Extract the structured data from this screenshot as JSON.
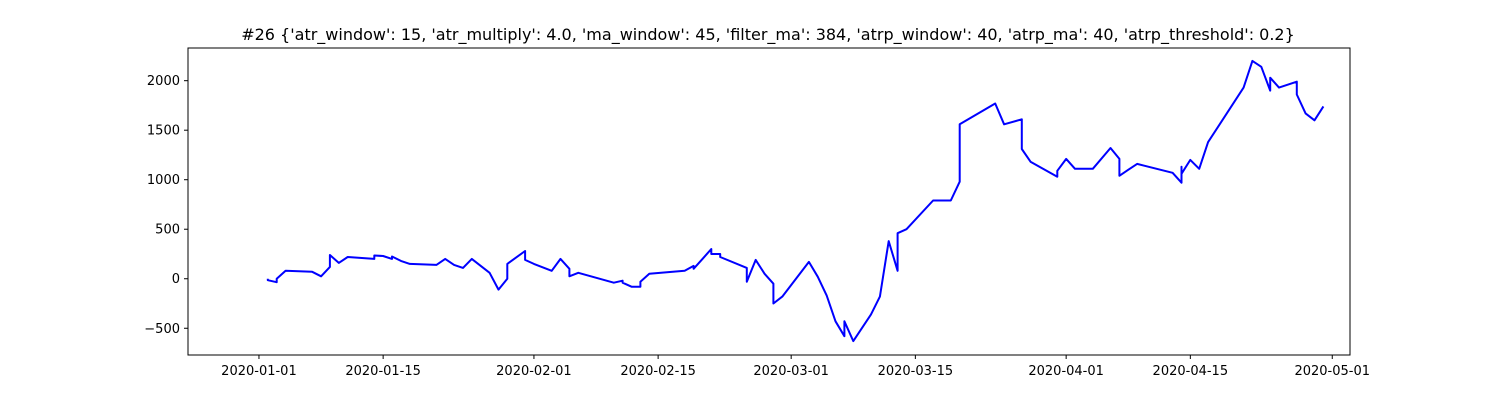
{
  "chart_data": {
    "type": "line",
    "title": "#26 {'atr_window': 15, 'atr_multiply': 4.0, 'ma_window': 45, 'filter_ma': 384, 'atrp_window': 40, 'atrp_ma': 40, 'atrp_threshold': 0.2}",
    "xlabel": "",
    "ylabel": "",
    "xlim": [
      "2019-12-24",
      "2020-05-03"
    ],
    "ylim": [
      -770,
      2330
    ],
    "x_ticks": [
      "2020-01-01",
      "2020-01-15",
      "2020-02-01",
      "2020-02-15",
      "2020-03-01",
      "2020-03-15",
      "2020-04-01",
      "2020-04-15",
      "2020-05-01"
    ],
    "y_ticks": [
      -500,
      0,
      500,
      1000,
      1500,
      2000
    ],
    "y_tick_labels": [
      "−500",
      "0",
      "500",
      "1000",
      "1500",
      "2000"
    ],
    "grid": false,
    "color": "#0000ff",
    "series": [
      {
        "name": "",
        "x": [
          "2020-01-02",
          "2020-01-02",
          "2020-01-03",
          "2020-01-03",
          "2020-01-04",
          "2020-01-07",
          "2020-01-08",
          "2020-01-09",
          "2020-01-09",
          "2020-01-10",
          "2020-01-11",
          "2020-01-14",
          "2020-01-14",
          "2020-01-15",
          "2020-01-16",
          "2020-01-16",
          "2020-01-17",
          "2020-01-18",
          "2020-01-21",
          "2020-01-22",
          "2020-01-23",
          "2020-01-24",
          "2020-01-25",
          "2020-01-27",
          "2020-01-28",
          "2020-01-29",
          "2020-01-29",
          "2020-01-31",
          "2020-01-31",
          "2020-02-01",
          "2020-02-03",
          "2020-02-04",
          "2020-02-05",
          "2020-02-05",
          "2020-02-06",
          "2020-02-06",
          "2020-02-10",
          "2020-02-11",
          "2020-02-11",
          "2020-02-12",
          "2020-02-13",
          "2020-02-13",
          "2020-02-14",
          "2020-02-18",
          "2020-02-19",
          "2020-02-19",
          "2020-02-20",
          "2020-02-21",
          "2020-02-21",
          "2020-02-22",
          "2020-02-22",
          "2020-02-25",
          "2020-02-25",
          "2020-02-26",
          "2020-02-27",
          "2020-02-28",
          "2020-02-28",
          "2020-02-29",
          "2020-03-03",
          "2020-03-04",
          "2020-03-05",
          "2020-03-06",
          "2020-03-07",
          "2020-03-07",
          "2020-03-08",
          "2020-03-10",
          "2020-03-11",
          "2020-03-12",
          "2020-03-13",
          "2020-03-13",
          "2020-03-14",
          "2020-03-17",
          "2020-03-19",
          "2020-03-20",
          "2020-03-20",
          "2020-03-24",
          "2020-03-25",
          "2020-03-27",
          "2020-03-27",
          "2020-03-28",
          "2020-03-31",
          "2020-03-31",
          "2020-04-01",
          "2020-04-02",
          "2020-04-04",
          "2020-04-06",
          "2020-04-07",
          "2020-04-07",
          "2020-04-07",
          "2020-04-08",
          "2020-04-09",
          "2020-04-13",
          "2020-04-14",
          "2020-04-14",
          "2020-04-14",
          "2020-04-15",
          "2020-04-16",
          "2020-04-17",
          "2020-04-21",
          "2020-04-22",
          "2020-04-23",
          "2020-04-24",
          "2020-04-24",
          "2020-04-25",
          "2020-04-27",
          "2020-04-27",
          "2020-04-28",
          "2020-04-29",
          "2020-04-29",
          "2020-04-30",
          "2020-04-30"
        ],
        "values": [
          0,
          -15,
          -35,
          0,
          80,
          70,
          25,
          120,
          240,
          160,
          220,
          200,
          235,
          230,
          200,
          225,
          180,
          150,
          140,
          200,
          140,
          110,
          200,
          60,
          -110,
          0,
          150,
          280,
          190,
          150,
          80,
          200,
          100,
          25,
          60,
          60,
          -40,
          -20,
          -40,
          -80,
          -80,
          -30,
          50,
          80,
          130,
          100,
          200,
          300,
          250,
          250,
          220,
          110,
          -30,
          190,
          50,
          -50,
          -250,
          -180,
          170,
          20,
          -170,
          -430,
          -580,
          -430,
          -630,
          -360,
          -180,
          380,
          80,
          460,
          500,
          790,
          790,
          980,
          1560,
          1770,
          1560,
          1610,
          1310,
          1180,
          1030,
          1090,
          1210,
          1110,
          1110,
          1320,
          1210,
          1150,
          1040,
          1100,
          1160,
          1070,
          970,
          1130,
          1060,
          1200,
          1110,
          1380,
          1930,
          2200,
          2140,
          1900,
          2030,
          1930,
          1990,
          1860,
          1670,
          1600,
          1600,
          1740,
          1740
        ]
      }
    ]
  }
}
